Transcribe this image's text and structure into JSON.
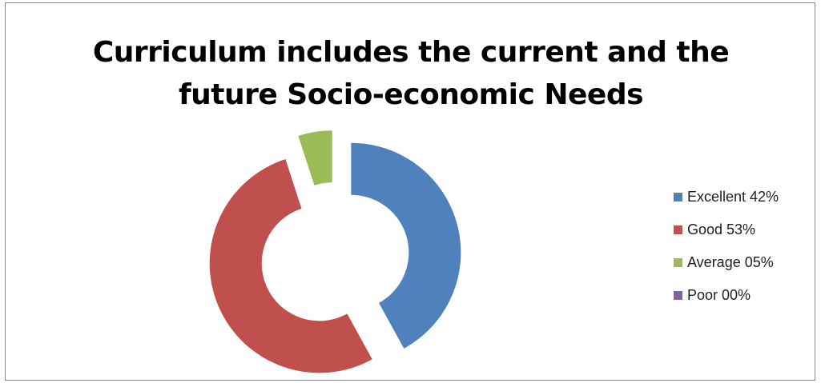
{
  "chart_data": {
    "type": "pie",
    "variant": "doughnut",
    "title": "Curriculum includes the current and the future Socio-economic Needs",
    "title_lines": [
      "Curriculum includes the current and the",
      "future Socio-economic Needs"
    ],
    "categories": [
      "Excellent 42%",
      "Good 53%",
      "Average 05%",
      "Poor 00%"
    ],
    "values": [
      42,
      53,
      5,
      0
    ],
    "colors": [
      "#4f81bd",
      "#c0504d",
      "#9bbb59",
      "#8064a2"
    ],
    "exploded": true,
    "legend_position": "right"
  }
}
